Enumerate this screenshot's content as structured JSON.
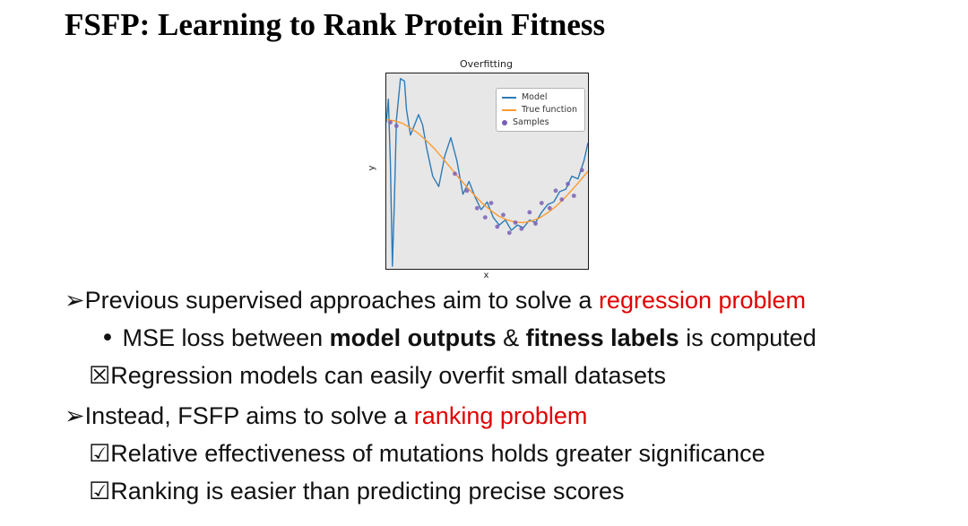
{
  "slide": {
    "title": "FSFP: Learning to Rank Protein Fitness"
  },
  "colors": {
    "highlight_red": "#e00000",
    "model_blue": "#2d7bb6",
    "true_function_orange": "#ff9b2f",
    "samples_purple": "#7a5fb5",
    "plot_background": "#e7e7e8"
  },
  "chart_data": {
    "type": "line",
    "title": "Overfitting",
    "xlabel": "x",
    "ylabel": "y",
    "xlim": [
      0,
      1
    ],
    "ylim": [
      -1.9,
      1.9
    ],
    "grid": false,
    "legend_position": "upper right",
    "legend": [
      {
        "label": "Model",
        "kind": "line",
        "color": "#2d7bb6"
      },
      {
        "label": "True function",
        "kind": "line",
        "color": "#ff9b2f"
      },
      {
        "label": "Samples",
        "kind": "dot",
        "color": "#7a5fb5"
      }
    ],
    "series": [
      {
        "name": "Model",
        "kind": "line",
        "color": "#2d7bb6",
        "points": [
          [
            0,
            0.95
          ],
          [
            0.01,
            1.4
          ],
          [
            0.02,
            0.2
          ],
          [
            0.03,
            -1.85
          ],
          [
            0.04,
            -0.6
          ],
          [
            0.05,
            1.0
          ],
          [
            0.07,
            1.8
          ],
          [
            0.09,
            1.75
          ],
          [
            0.1,
            1.2
          ],
          [
            0.12,
            0.7
          ],
          [
            0.14,
            0.9
          ],
          [
            0.16,
            1.1
          ],
          [
            0.18,
            0.9
          ],
          [
            0.2,
            0.45
          ],
          [
            0.23,
            -0.1
          ],
          [
            0.26,
            -0.3
          ],
          [
            0.29,
            0.3
          ],
          [
            0.32,
            0.65
          ],
          [
            0.35,
            0.2
          ],
          [
            0.38,
            -0.45
          ],
          [
            0.41,
            -0.2
          ],
          [
            0.44,
            -0.5
          ],
          [
            0.47,
            -0.75
          ],
          [
            0.5,
            -0.6
          ],
          [
            0.53,
            -0.9
          ],
          [
            0.56,
            -1.05
          ],
          [
            0.59,
            -0.95
          ],
          [
            0.62,
            -1.15
          ],
          [
            0.65,
            -1.05
          ],
          [
            0.68,
            -1.1
          ],
          [
            0.71,
            -0.95
          ],
          [
            0.74,
            -1.0
          ],
          [
            0.77,
            -0.8
          ],
          [
            0.8,
            -0.65
          ],
          [
            0.83,
            -0.6
          ],
          [
            0.86,
            -0.4
          ],
          [
            0.89,
            -0.35
          ],
          [
            0.92,
            -0.1
          ],
          [
            0.95,
            -0.15
          ],
          [
            0.98,
            0.2
          ],
          [
            1,
            0.55
          ]
        ]
      },
      {
        "name": "True function",
        "kind": "line",
        "color": "#ff9b2f",
        "points": [
          [
            0,
            1.0
          ],
          [
            0.04,
            0.98
          ],
          [
            0.08,
            0.93
          ],
          [
            0.12,
            0.84
          ],
          [
            0.16,
            0.73
          ],
          [
            0.2,
            0.59
          ],
          [
            0.24,
            0.43
          ],
          [
            0.28,
            0.25
          ],
          [
            0.32,
            0.06
          ],
          [
            0.36,
            -0.13
          ],
          [
            0.4,
            -0.31
          ],
          [
            0.44,
            -0.48
          ],
          [
            0.48,
            -0.64
          ],
          [
            0.52,
            -0.77
          ],
          [
            0.56,
            -0.88
          ],
          [
            0.6,
            -0.95
          ],
          [
            0.64,
            -0.99
          ],
          [
            0.68,
            -1.0
          ],
          [
            0.72,
            -0.97
          ],
          [
            0.76,
            -0.91
          ],
          [
            0.8,
            -0.81
          ],
          [
            0.84,
            -0.69
          ],
          [
            0.88,
            -0.54
          ],
          [
            0.92,
            -0.37
          ],
          [
            0.96,
            -0.19
          ],
          [
            1,
            0.0
          ]
        ]
      },
      {
        "name": "Samples",
        "kind": "scatter",
        "color": "#7a5fb5",
        "points": [
          [
            0.02,
            0.95
          ],
          [
            0.05,
            0.88
          ],
          [
            0.34,
            -0.05
          ],
          [
            0.4,
            -0.38
          ],
          [
            0.45,
            -0.72
          ],
          [
            0.49,
            -0.9
          ],
          [
            0.52,
            -0.62
          ],
          [
            0.55,
            -1.08
          ],
          [
            0.58,
            -0.85
          ],
          [
            0.61,
            -1.2
          ],
          [
            0.64,
            -1.0
          ],
          [
            0.67,
            -1.12
          ],
          [
            0.71,
            -0.8
          ],
          [
            0.74,
            -1.02
          ],
          [
            0.77,
            -0.62
          ],
          [
            0.81,
            -0.72
          ],
          [
            0.84,
            -0.38
          ],
          [
            0.87,
            -0.55
          ],
          [
            0.9,
            -0.25
          ],
          [
            0.93,
            -0.48
          ],
          [
            0.97,
            0.02
          ]
        ]
      }
    ]
  },
  "bullets": [
    {
      "class": "b-main",
      "marker": "➢",
      "marker_class": "",
      "segments": [
        {
          "text": "Previous supervised approaches aim to solve a "
        },
        {
          "text": "regression problem",
          "style": "red"
        }
      ]
    },
    {
      "class": "b-dot",
      "marker": "• ",
      "marker_class": "",
      "segments": [
        {
          "text": "MSE loss between "
        },
        {
          "text": "model outputs",
          "style": "bold"
        },
        {
          "text": " & "
        },
        {
          "text": "fitness labels",
          "style": "bold"
        },
        {
          "text": " is computed"
        }
      ]
    },
    {
      "class": "b-check",
      "marker": "☒",
      "marker_class": "marker-check",
      "segments": [
        {
          "text": "Regression models can easily overfit small datasets"
        }
      ]
    },
    {
      "class": "b-main gap",
      "marker": "➢",
      "marker_class": "",
      "segments": [
        {
          "text": "Instead, FSFP aims to solve a "
        },
        {
          "text": "ranking problem",
          "style": "red"
        }
      ]
    },
    {
      "class": "b-check",
      "marker": "☑",
      "marker_class": "marker-check",
      "segments": [
        {
          "text": "Relative effectiveness of mutations holds greater significance"
        }
      ]
    },
    {
      "class": "b-check",
      "marker": "☑",
      "marker_class": "marker-check",
      "segments": [
        {
          "text": "Ranking is easier than predicting precise scores"
        }
      ]
    }
  ]
}
